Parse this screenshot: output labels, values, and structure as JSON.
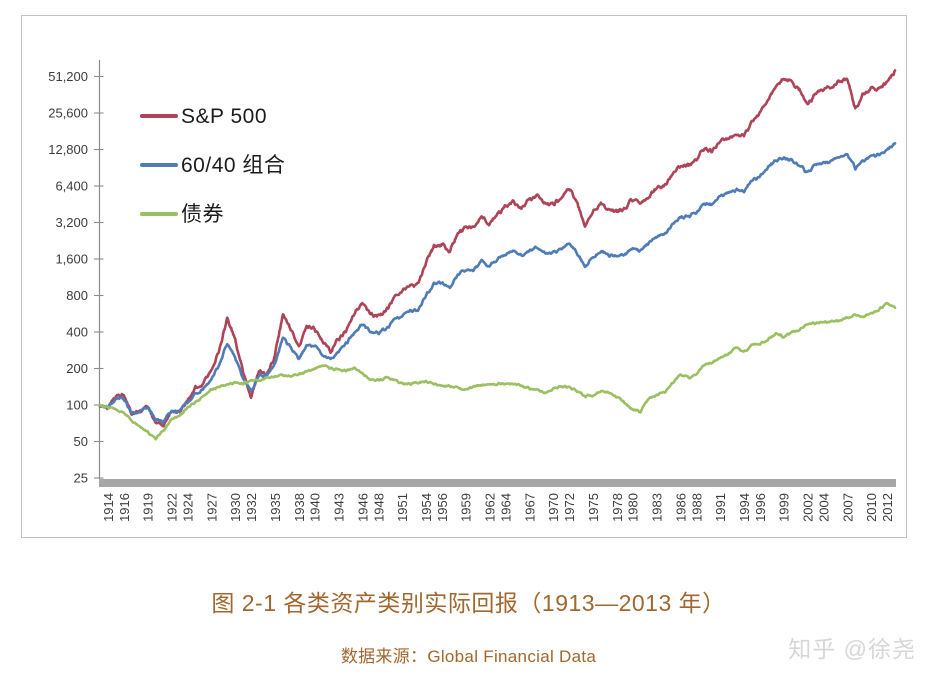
{
  "caption": {
    "title": "图 2-1 各类资产类别实际回报（1913—2013 年）",
    "source": "数据来源：Global Financial Data"
  },
  "watermark": {
    "text": "知乎 @徐尧",
    "color": "#d7d7d7"
  },
  "colors": {
    "axis": "#8c8c8c",
    "tick_text": "#3c3c3c",
    "baseline_bar": "#a6a6a6",
    "frame": "#c2c2c2",
    "caption": "#a1672e"
  },
  "chart_data": {
    "type": "line",
    "y_scale": "log2",
    "ylim": [
      25,
      51200
    ],
    "x_start": 1913,
    "x_end": 2013,
    "grid": false,
    "legend_position": "top-left-inside",
    "y_ticks": [
      51200,
      25600,
      12800,
      6400,
      3200,
      1600,
      800,
      400,
      200,
      100,
      50,
      25
    ],
    "x_tick_labels": [
      1914,
      1916,
      1919,
      1922,
      1924,
      1927,
      1930,
      1932,
      1935,
      1938,
      1940,
      1943,
      1946,
      1948,
      1951,
      1954,
      1956,
      1959,
      1962,
      1964,
      1967,
      1970,
      1972,
      1975,
      1978,
      1980,
      1983,
      1986,
      1988,
      1991,
      1994,
      1996,
      1999,
      2002,
      2004,
      2007,
      2010,
      2012
    ],
    "index_base": 100,
    "series": [
      {
        "name": "S&P 500",
        "color": "#ae4457",
        "values": [
          100,
          95,
          120,
          122,
          84,
          88,
          98,
          72,
          68,
          88,
          90,
          108,
          138,
          152,
          195,
          285,
          520,
          345,
          190,
          115,
          190,
          180,
          255,
          560,
          420,
          300,
          440,
          420,
          330,
          280,
          350,
          420,
          560,
          700,
          560,
          540,
          600,
          760,
          860,
          980,
          980,
          1500,
          2000,
          2100,
          1850,
          2600,
          2900,
          2900,
          3600,
          3100,
          3800,
          4300,
          4800,
          4200,
          4900,
          5300,
          4500,
          4500,
          5100,
          6200,
          4700,
          3000,
          3900,
          4600,
          4100,
          4000,
          4200,
          5000,
          4600,
          5200,
          6300,
          6400,
          8100,
          9300,
          9500,
          10500,
          13100,
          12300,
          15300,
          15900,
          16900,
          16600,
          21900,
          25900,
          33300,
          41300,
          50000,
          46000,
          39500,
          30000,
          37500,
          40500,
          41500,
          46500,
          48500,
          27500,
          36500,
          41000,
          40000,
          45500,
          57500
        ]
      },
      {
        "name": "60/40 组合",
        "color": "#4f7cb7",
        "values": [
          100,
          97,
          112,
          113,
          86,
          90,
          97,
          76,
          73,
          89,
          91,
          104,
          124,
          136,
          162,
          215,
          320,
          245,
          165,
          130,
          175,
          172,
          220,
          360,
          295,
          240,
          315,
          305,
          260,
          235,
          280,
          320,
          400,
          470,
          400,
          395,
          425,
          500,
          545,
          600,
          605,
          810,
          990,
          1020,
          930,
          1190,
          1290,
          1310,
          1530,
          1390,
          1600,
          1750,
          1890,
          1710,
          1900,
          2000,
          1760,
          1790,
          1930,
          2150,
          1790,
          1380,
          1630,
          1860,
          1730,
          1700,
          1750,
          1930,
          1870,
          2170,
          2470,
          2560,
          3090,
          3520,
          3590,
          3870,
          4620,
          4470,
          5290,
          5530,
          5920,
          5730,
          7000,
          7700,
          9050,
          10400,
          10900,
          10400,
          9400,
          8300,
          9500,
          10100,
          10300,
          11200,
          11800,
          9000,
          10400,
          11300,
          11600,
          12700,
          14400
        ]
      },
      {
        "name": "债券",
        "color": "#9cbf61",
        "values": [
          100,
          96,
          92,
          86,
          74,
          66,
          60,
          53,
          62,
          76,
          82,
          95,
          105,
          118,
          135,
          142,
          145,
          155,
          150,
          160,
          158,
          168,
          172,
          175,
          172,
          180,
          188,
          200,
          212,
          200,
          195,
          192,
          200,
          182,
          162,
          160,
          168,
          162,
          150,
          150,
          152,
          156,
          150,
          142,
          144,
          138,
          134,
          144,
          144,
          150,
          149,
          150,
          148,
          145,
          137,
          133,
          125,
          134,
          142,
          141,
          130,
          119,
          120,
          130,
          126,
          117,
          105,
          92,
          88,
          114,
          120,
          128,
          152,
          178,
          168,
          180,
          215,
          222,
          245,
          260,
          300,
          272,
          315,
          320,
          345,
          390,
          368,
          398,
          418,
          462,
          472,
          482,
          488,
          494,
          522,
          558,
          528,
          568,
          618,
          688,
          635
        ]
      }
    ]
  }
}
